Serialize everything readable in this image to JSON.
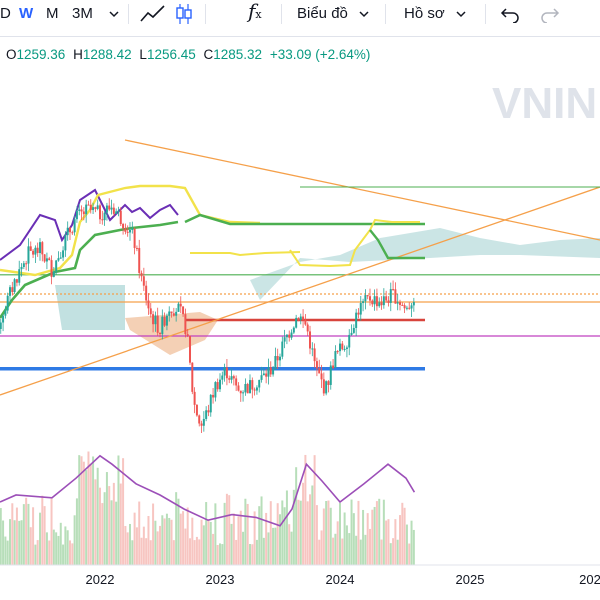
{
  "toolbar": {
    "interval_partial": "D",
    "intervals": [
      "W",
      "M",
      "3M"
    ],
    "active_interval": "W",
    "function_label": "f",
    "function_sub": "x",
    "chart_menu_label": "Biểu đồ",
    "profile_menu_label": "Hồ sơ"
  },
  "ohlc": {
    "o_key": "O",
    "o_val": "1259.36",
    "h_key": "H",
    "h_val": "1288.42",
    "l_key": "L",
    "l_val": "1256.45",
    "c_key": "C",
    "c_val": "1285.32",
    "change": "+33.09 (+2.64%)"
  },
  "colors": {
    "up": "#26a69a",
    "down": "#ef5350",
    "accent": "#2962ff",
    "orange": "#f5a04a",
    "yellow": "#f2e24a",
    "purple": "#6a2fb5",
    "green": "#4caf50",
    "blue": "#2f7ae5",
    "darkred": "#d8443c",
    "cloud": "#a8d4d4",
    "cloud_red": "#f2c8a8",
    "magenta": "#c040c0",
    "volume_ma": "#9c4fb8"
  },
  "chart_data": {
    "type": "line",
    "symbol_watermark": "VNIN",
    "x_tick_labels": [
      "2022",
      "2023",
      "2024",
      "2025",
      "202"
    ],
    "price_ylim": [
      800,
      1600
    ],
    "horizontal_levels": [
      {
        "name": "green-top",
        "value": 1338,
        "color": "#4caf50"
      },
      {
        "name": "orange-dotted",
        "value": 1290,
        "color": "#f5a04a"
      },
      {
        "name": "orange-solid",
        "value": 1270,
        "color": "#f5a04a"
      },
      {
        "name": "dark-red",
        "value": 1225,
        "color": "#d8443c"
      },
      {
        "name": "magenta",
        "value": 1185,
        "color": "#c040c0"
      },
      {
        "name": "blue",
        "value": 1103,
        "color": "#2f7ae5"
      }
    ],
    "close_series": [
      {
        "t": 2021.0,
        "v": 1100
      },
      {
        "t": 2021.1,
        "v": 1180
      },
      {
        "t": 2021.2,
        "v": 1250
      },
      {
        "t": 2021.3,
        "v": 1330
      },
      {
        "t": 2021.4,
        "v": 1390
      },
      {
        "t": 2021.5,
        "v": 1400
      },
      {
        "t": 2021.6,
        "v": 1350
      },
      {
        "t": 2021.7,
        "v": 1420
      },
      {
        "t": 2021.8,
        "v": 1480
      },
      {
        "t": 2021.9,
        "v": 1500
      },
      {
        "t": 2022.0,
        "v": 1490
      },
      {
        "t": 2022.1,
        "v": 1510
      },
      {
        "t": 2022.2,
        "v": 1470
      },
      {
        "t": 2022.28,
        "v": 1430
      },
      {
        "t": 2022.35,
        "v": 1320
      },
      {
        "t": 2022.42,
        "v": 1240
      },
      {
        "t": 2022.5,
        "v": 1200
      },
      {
        "t": 2022.58,
        "v": 1260
      },
      {
        "t": 2022.66,
        "v": 1250
      },
      {
        "t": 2022.72,
        "v": 1200
      },
      {
        "t": 2022.78,
        "v": 1020
      },
      {
        "t": 2022.84,
        "v": 960
      },
      {
        "t": 2022.9,
        "v": 1000
      },
      {
        "t": 2022.96,
        "v": 1060
      },
      {
        "t": 2023.05,
        "v": 1100
      },
      {
        "t": 2023.15,
        "v": 1050
      },
      {
        "t": 2023.25,
        "v": 1060
      },
      {
        "t": 2023.35,
        "v": 1080
      },
      {
        "t": 2023.45,
        "v": 1110
      },
      {
        "t": 2023.55,
        "v": 1180
      },
      {
        "t": 2023.65,
        "v": 1240
      },
      {
        "t": 2023.72,
        "v": 1210
      },
      {
        "t": 2023.8,
        "v": 1100
      },
      {
        "t": 2023.88,
        "v": 1050
      },
      {
        "t": 2023.95,
        "v": 1130
      },
      {
        "t": 2024.05,
        "v": 1170
      },
      {
        "t": 2024.15,
        "v": 1250
      },
      {
        "t": 2024.25,
        "v": 1280
      },
      {
        "t": 2024.35,
        "v": 1270
      },
      {
        "t": 2024.45,
        "v": 1290
      },
      {
        "t": 2024.55,
        "v": 1250
      },
      {
        "t": 2024.62,
        "v": 1285
      }
    ],
    "volume_ma": [
      {
        "t": 2021.0,
        "v": 0.45
      },
      {
        "t": 2021.3,
        "v": 0.5
      },
      {
        "t": 2021.6,
        "v": 0.48
      },
      {
        "t": 2021.8,
        "v": 0.62
      },
      {
        "t": 2022.0,
        "v": 0.78
      },
      {
        "t": 2022.1,
        "v": 0.72
      },
      {
        "t": 2022.3,
        "v": 0.58
      },
      {
        "t": 2022.5,
        "v": 0.5
      },
      {
        "t": 2022.7,
        "v": 0.4
      },
      {
        "t": 2022.9,
        "v": 0.32
      },
      {
        "t": 2023.1,
        "v": 0.36
      },
      {
        "t": 2023.3,
        "v": 0.34
      },
      {
        "t": 2023.5,
        "v": 0.28
      },
      {
        "t": 2023.6,
        "v": 0.4
      },
      {
        "t": 2023.72,
        "v": 0.72
      },
      {
        "t": 2023.85,
        "v": 0.6
      },
      {
        "t": 2024.0,
        "v": 0.45
      },
      {
        "t": 2024.2,
        "v": 0.58
      },
      {
        "t": 2024.4,
        "v": 0.72
      },
      {
        "t": 2024.55,
        "v": 0.62
      },
      {
        "t": 2024.62,
        "v": 0.52
      }
    ]
  }
}
